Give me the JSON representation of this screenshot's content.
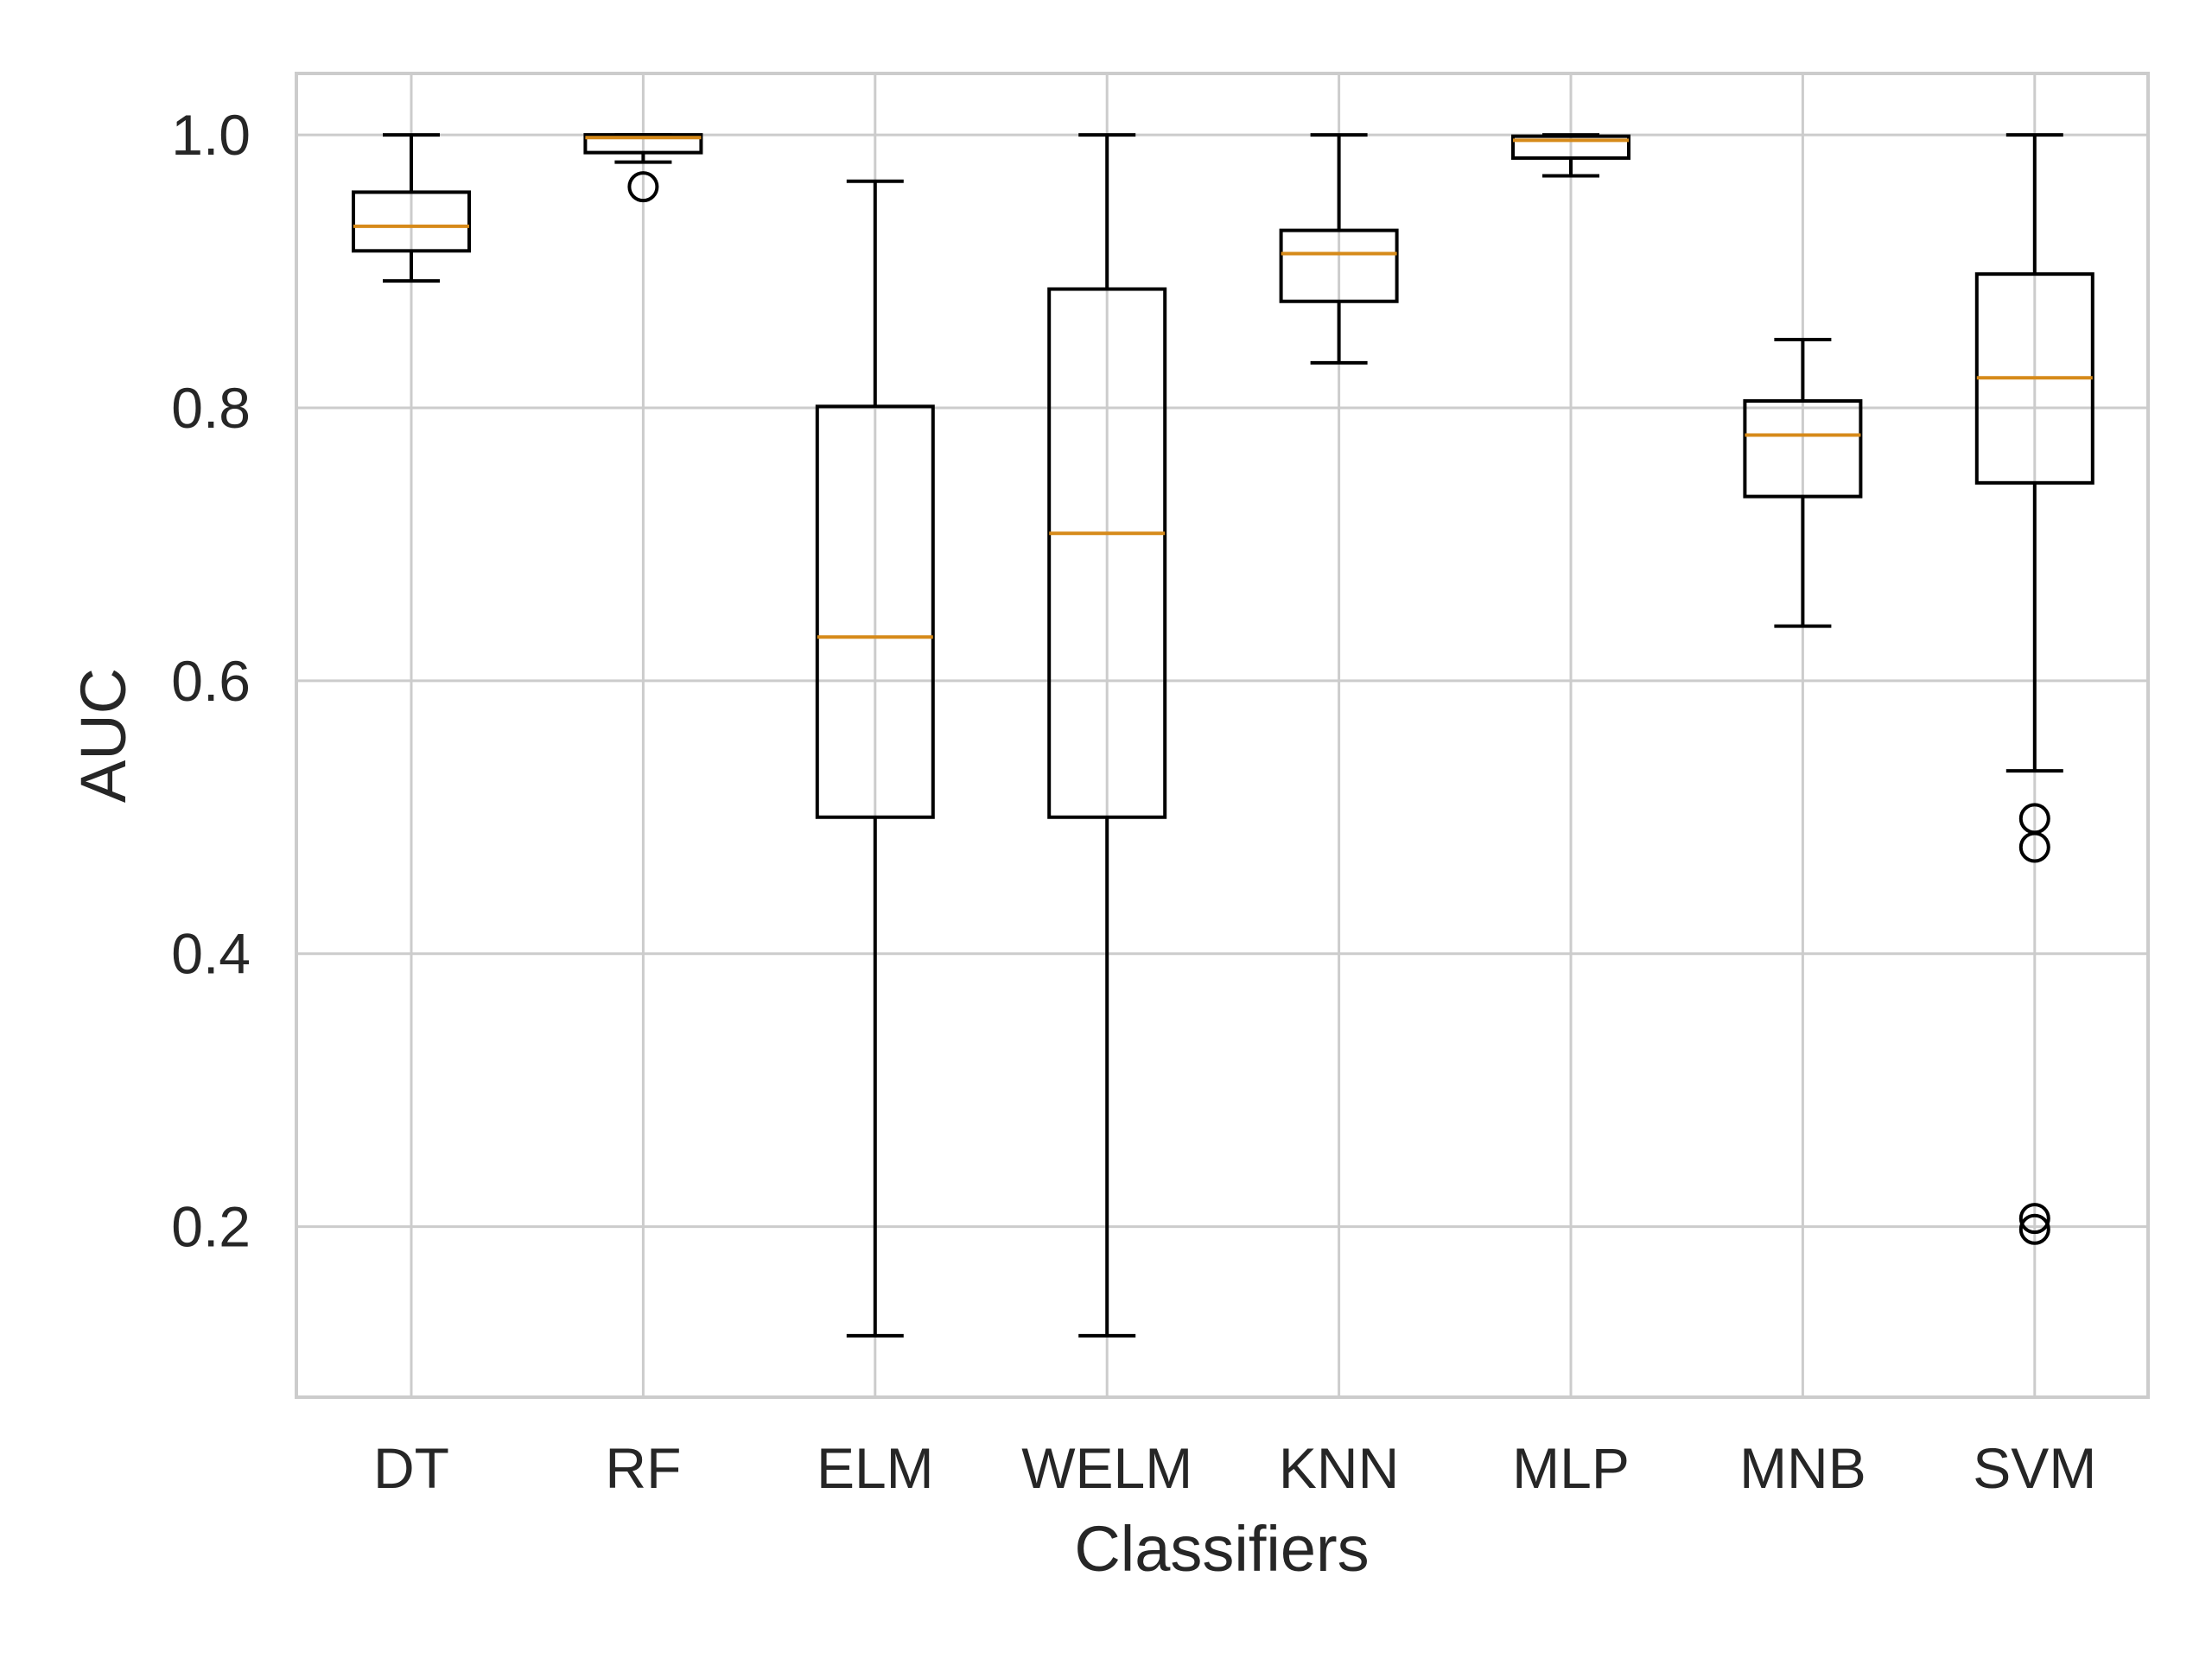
{
  "chart_data": {
    "type": "box",
    "xlabel": "Classifiers",
    "ylabel": "AUC",
    "ylim": [
      0.075,
      1.045
    ],
    "yticks": [
      "0.2",
      "0.4",
      "0.6",
      "0.8",
      "1.0"
    ],
    "grid": true,
    "colors": {
      "box": "#000000",
      "median": "#d68a1a",
      "grid": "#cccccc",
      "frame": "#cccccc",
      "text": "#262626"
    },
    "categories": [
      "DT",
      "RF",
      "ELM",
      "WELM",
      "KNN",
      "MLP",
      "MNB",
      "SVM"
    ],
    "boxes": [
      {
        "label": "DT",
        "whislo": 0.893,
        "q1": 0.915,
        "med": 0.933,
        "q3": 0.958,
        "whishi": 1.0,
        "fliers": []
      },
      {
        "label": "RF",
        "whislo": 0.98,
        "q1": 0.987,
        "med": 0.998,
        "q3": 1.0,
        "whishi": 1.0,
        "fliers": [
          0.962
        ]
      },
      {
        "label": "ELM",
        "whislo": 0.12,
        "q1": 0.5,
        "med": 0.632,
        "q3": 0.801,
        "whishi": 0.966,
        "fliers": []
      },
      {
        "label": "WELM",
        "whislo": 0.12,
        "q1": 0.5,
        "med": 0.708,
        "q3": 0.887,
        "whishi": 1.0,
        "fliers": []
      },
      {
        "label": "KNN",
        "whislo": 0.833,
        "q1": 0.878,
        "med": 0.913,
        "q3": 0.93,
        "whishi": 1.0,
        "fliers": []
      },
      {
        "label": "MLP",
        "whislo": 0.97,
        "q1": 0.983,
        "med": 0.996,
        "q3": 0.999,
        "whishi": 1.0,
        "fliers": []
      },
      {
        "label": "MNB",
        "whislo": 0.64,
        "q1": 0.735,
        "med": 0.78,
        "q3": 0.805,
        "whishi": 0.85,
        "fliers": []
      },
      {
        "label": "SVM",
        "whislo": 0.534,
        "q1": 0.745,
        "med": 0.822,
        "q3": 0.898,
        "whishi": 1.0,
        "fliers": [
          0.478,
          0.499,
          0.198,
          0.206
        ]
      }
    ]
  }
}
